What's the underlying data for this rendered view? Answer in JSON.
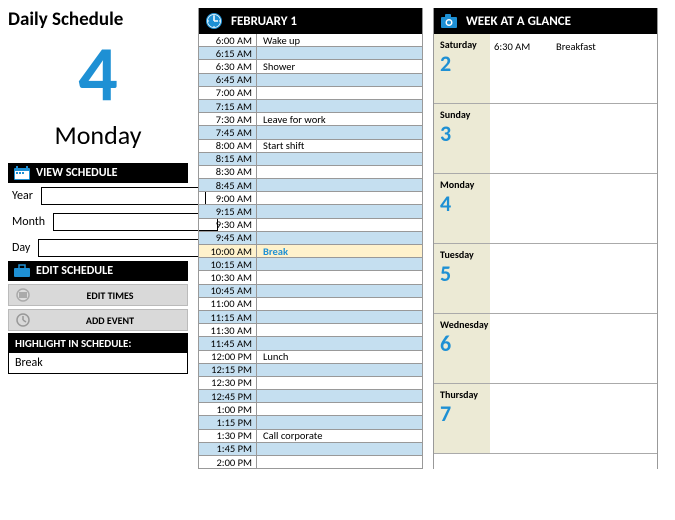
{
  "title": "Daily Schedule",
  "big_date": "4",
  "day_name": "Monday",
  "view_schedule": {
    "header": "VIEW SCHEDULE",
    "year_label": "Year",
    "month_label": "Month",
    "day_label": "Day",
    "year_value": "",
    "month_value": "",
    "day_value": ""
  },
  "edit_schedule": {
    "header": "EDIT SCHEDULE",
    "edit_times": "EDIT TIMES",
    "add_event": "ADD EVENT"
  },
  "highlight": {
    "header": "HIGHLIGHT IN SCHEDULE:",
    "value": "Break"
  },
  "schedule": {
    "title": "FEBRUARY 1",
    "rows": [
      {
        "time": "6:00 AM",
        "event": "Wake up",
        "alt": false
      },
      {
        "time": "6:15 AM",
        "event": "",
        "alt": true
      },
      {
        "time": "6:30 AM",
        "event": "Shower",
        "alt": false
      },
      {
        "time": "6:45 AM",
        "event": "",
        "alt": true
      },
      {
        "time": "7:00 AM",
        "event": "",
        "alt": false
      },
      {
        "time": "7:15 AM",
        "event": "",
        "alt": true
      },
      {
        "time": "7:30 AM",
        "event": "Leave for work",
        "alt": false
      },
      {
        "time": "7:45 AM",
        "event": "",
        "alt": true
      },
      {
        "time": "8:00 AM",
        "event": "Start shift",
        "alt": false
      },
      {
        "time": "8:15 AM",
        "event": "",
        "alt": true
      },
      {
        "time": "8:30 AM",
        "event": "",
        "alt": false
      },
      {
        "time": "8:45 AM",
        "event": "",
        "alt": true
      },
      {
        "time": "9:00 AM",
        "event": "",
        "alt": false
      },
      {
        "time": "9:15 AM",
        "event": "",
        "alt": true
      },
      {
        "time": "9:30 AM",
        "event": "",
        "alt": false
      },
      {
        "time": "9:45 AM",
        "event": "",
        "alt": true
      },
      {
        "time": "10:00 AM",
        "event": "Break",
        "alt": false,
        "highlight": true
      },
      {
        "time": "10:15 AM",
        "event": "",
        "alt": true
      },
      {
        "time": "10:30 AM",
        "event": "",
        "alt": false
      },
      {
        "time": "10:45 AM",
        "event": "",
        "alt": true
      },
      {
        "time": "11:00 AM",
        "event": "",
        "alt": false
      },
      {
        "time": "11:15 AM",
        "event": "",
        "alt": true
      },
      {
        "time": "11:30 AM",
        "event": "",
        "alt": false
      },
      {
        "time": "11:45 AM",
        "event": "",
        "alt": true
      },
      {
        "time": "12:00 PM",
        "event": "Lunch",
        "alt": false
      },
      {
        "time": "12:15 PM",
        "event": "",
        "alt": true
      },
      {
        "time": "12:30 PM",
        "event": "",
        "alt": false
      },
      {
        "time": "12:45 PM",
        "event": "",
        "alt": true
      },
      {
        "time": "1:00 PM",
        "event": "",
        "alt": false
      },
      {
        "time": "1:15 PM",
        "event": "",
        "alt": true
      },
      {
        "time": "1:30 PM",
        "event": "Call corporate",
        "alt": false
      },
      {
        "time": "1:45 PM",
        "event": "",
        "alt": true
      },
      {
        "time": "2:00 PM",
        "event": "",
        "alt": false
      }
    ]
  },
  "week": {
    "title": "WEEK AT A GLANCE",
    "days": [
      {
        "name": "Saturday",
        "num": "2",
        "events": [
          {
            "time": "6:30 AM",
            "label": "Breakfast"
          }
        ]
      },
      {
        "name": "Sunday",
        "num": "3",
        "events": []
      },
      {
        "name": "Monday",
        "num": "4",
        "events": []
      },
      {
        "name": "Tuesday",
        "num": "5",
        "events": []
      },
      {
        "name": "Wednesday",
        "num": "6",
        "events": []
      },
      {
        "name": "Thursday",
        "num": "7",
        "events": []
      }
    ]
  },
  "colors": {
    "accent": "#1e90d4",
    "alt_row": "#c5dff0",
    "highlight_bg": "#fff2cc",
    "week_label_bg": "#ecead5"
  }
}
